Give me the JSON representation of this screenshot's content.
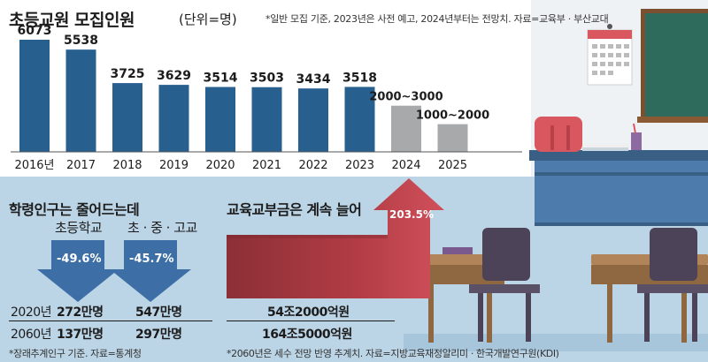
{
  "header": {
    "title": "초등교원 모집인원",
    "unit": "(단위=명)",
    "note": "*일반 모집 기준, 2023년은 사전 예고, 2024년부터는 전망치. 자료=교육부 · 부산교대"
  },
  "chart_data": {
    "type": "bar",
    "title": "초등교원 모집인원",
    "unit": "(단위=명)",
    "categories": [
      "2016년",
      "2017",
      "2018",
      "2019",
      "2020",
      "2021",
      "2022",
      "2023",
      "2024",
      "2025"
    ],
    "values": [
      6073,
      5538,
      3725,
      3629,
      3514,
      3503,
      3434,
      3518,
      2500,
      1500
    ],
    "value_labels": [
      "6073",
      "5538",
      "3725",
      "3629",
      "3514",
      "3503",
      "3434",
      "3518",
      "2000~3000",
      "1000~2000"
    ],
    "projected": [
      false,
      false,
      false,
      false,
      false,
      false,
      false,
      false,
      true,
      true
    ],
    "ylim": [
      0,
      6600
    ],
    "colors": {
      "actual": "#275f8e",
      "projected": "#a7a9ab"
    }
  },
  "school_pop": {
    "title": "학령인구는 줄어드는데",
    "groups": [
      {
        "label": "초등학교",
        "change": "-49.6%",
        "v2020": "272만명",
        "v2060": "137만명"
      },
      {
        "label": "초 · 중 · 고교",
        "change": "-45.7%",
        "v2020": "547만명",
        "v2060": "297만명"
      }
    ],
    "years": [
      "2020년",
      "2060년"
    ],
    "footnote": "*장래추계인구 기준. 자료=통계청"
  },
  "edu_grant": {
    "title": "교육교부금은 계속 늘어",
    "change": "203.5%",
    "v2020": "54조2000억원",
    "v2060": "164조5000억원",
    "footnote": "*2060년은 세수 전망 반영 추계치. 자료=지방교육재정알리미 · 한국개발연구원(KDI)"
  },
  "colors": {
    "bar_blue": "#275f8e",
    "arrow_blue": "#3d6fa6",
    "arrow_red": "#d0505b",
    "bg": "#bcd5e6"
  }
}
